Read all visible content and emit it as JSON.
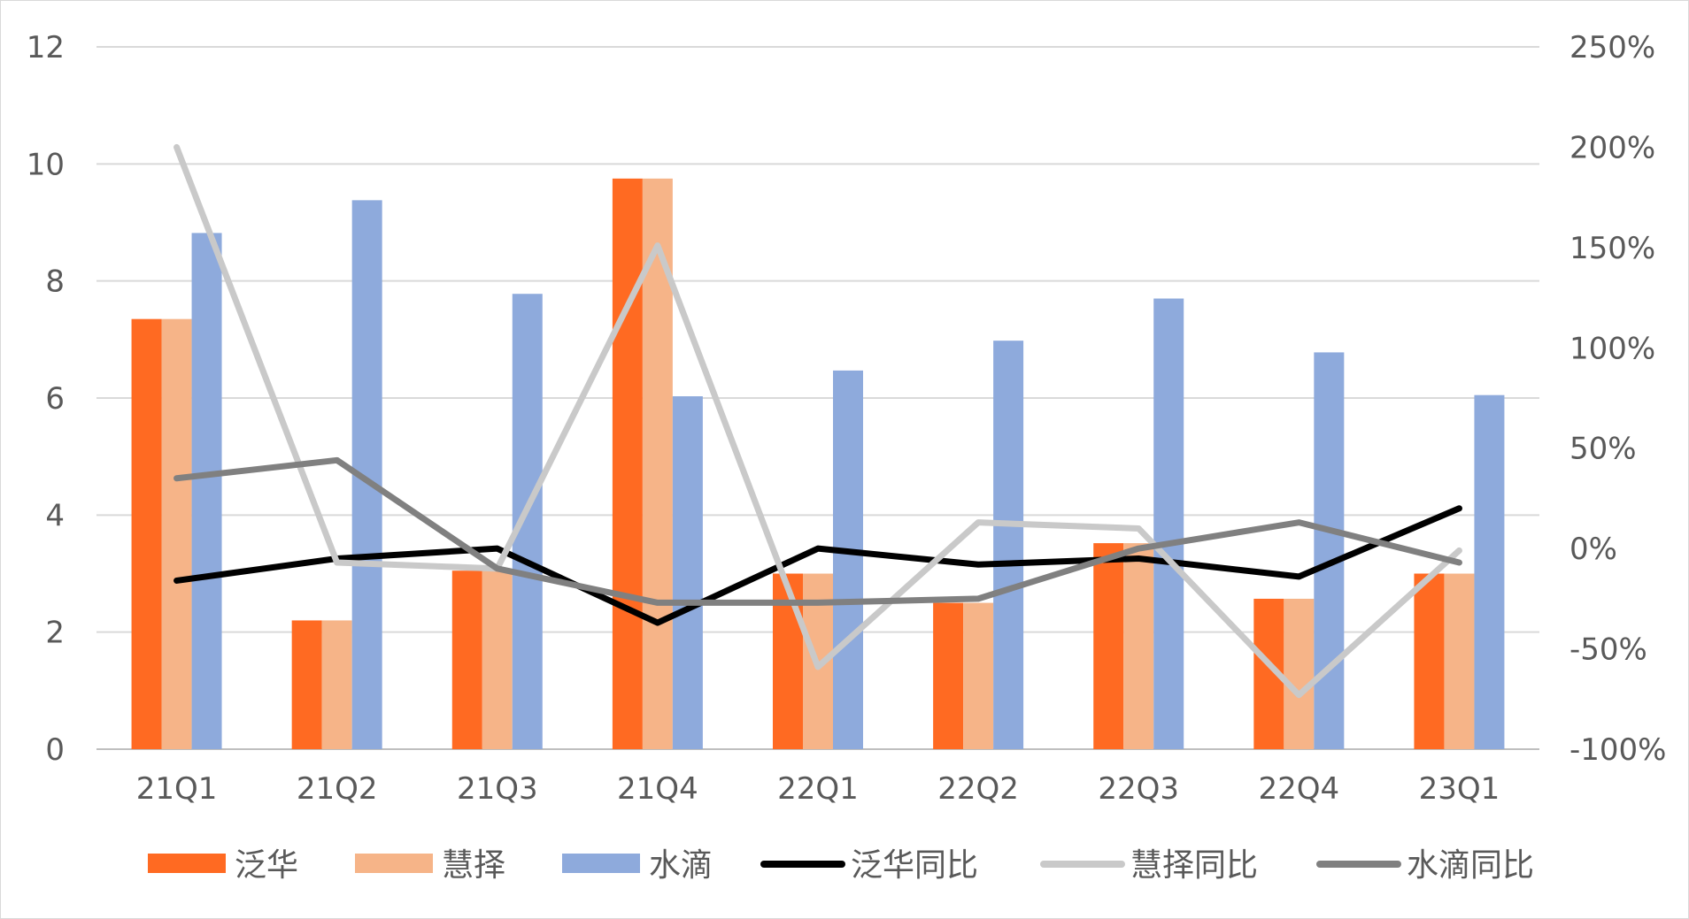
{
  "chart_data": {
    "type": "bar",
    "title": "",
    "xlabel": "",
    "ylabel": "",
    "categories": [
      "21Q1",
      "21Q2",
      "21Q3",
      "21Q4",
      "22Q1",
      "22Q2",
      "22Q3",
      "22Q4",
      "23Q1"
    ],
    "ylim": [
      0,
      12
    ],
    "y_ticks": [
      0,
      2,
      4,
      6,
      8,
      10,
      12
    ],
    "y_tick_labels": [
      "0",
      "2",
      "4",
      "6",
      "8",
      "10",
      "12"
    ],
    "y2lim": [
      -100,
      250
    ],
    "y2_ticks": [
      -100,
      -50,
      0,
      50,
      100,
      150,
      200,
      250
    ],
    "y2_tick_labels": [
      "-100%",
      "-50%",
      "0%",
      "50%",
      "100%",
      "150%",
      "200%",
      "250%"
    ],
    "grid": true,
    "legend_position": "bottom",
    "bar_series": [
      {
        "name": "泛华",
        "color": "#ff6a22",
        "values": [
          7.35,
          2.2,
          3.05,
          9.75,
          3.0,
          2.5,
          3.52,
          2.57,
          3.0
        ]
      },
      {
        "name": "慧择",
        "color": "#f6b488",
        "values": [
          7.35,
          2.2,
          3.05,
          9.75,
          3.0,
          2.5,
          3.52,
          2.57,
          3.0
        ]
      },
      {
        "name": "水滴",
        "color": "#8eaadc",
        "values": [
          8.82,
          9.38,
          7.78,
          6.03,
          6.47,
          6.98,
          7.7,
          6.78,
          6.05
        ]
      }
    ],
    "line_series": [
      {
        "name": "泛华同比",
        "color": "#000000",
        "axis": "y2",
        "values": [
          -16,
          -5,
          0,
          -37,
          0,
          -8,
          -5,
          -14,
          20
        ]
      },
      {
        "name": "慧择同比",
        "color": "#c9c9c9",
        "axis": "y2",
        "values": [
          200,
          -7,
          -10,
          151,
          -59,
          13,
          10,
          -73,
          -1
        ]
      },
      {
        "name": "水滴同比",
        "color": "#808080",
        "axis": "y2",
        "values": [
          35,
          44,
          -10,
          -27,
          -27,
          -25,
          0,
          13,
          -7
        ]
      }
    ]
  }
}
